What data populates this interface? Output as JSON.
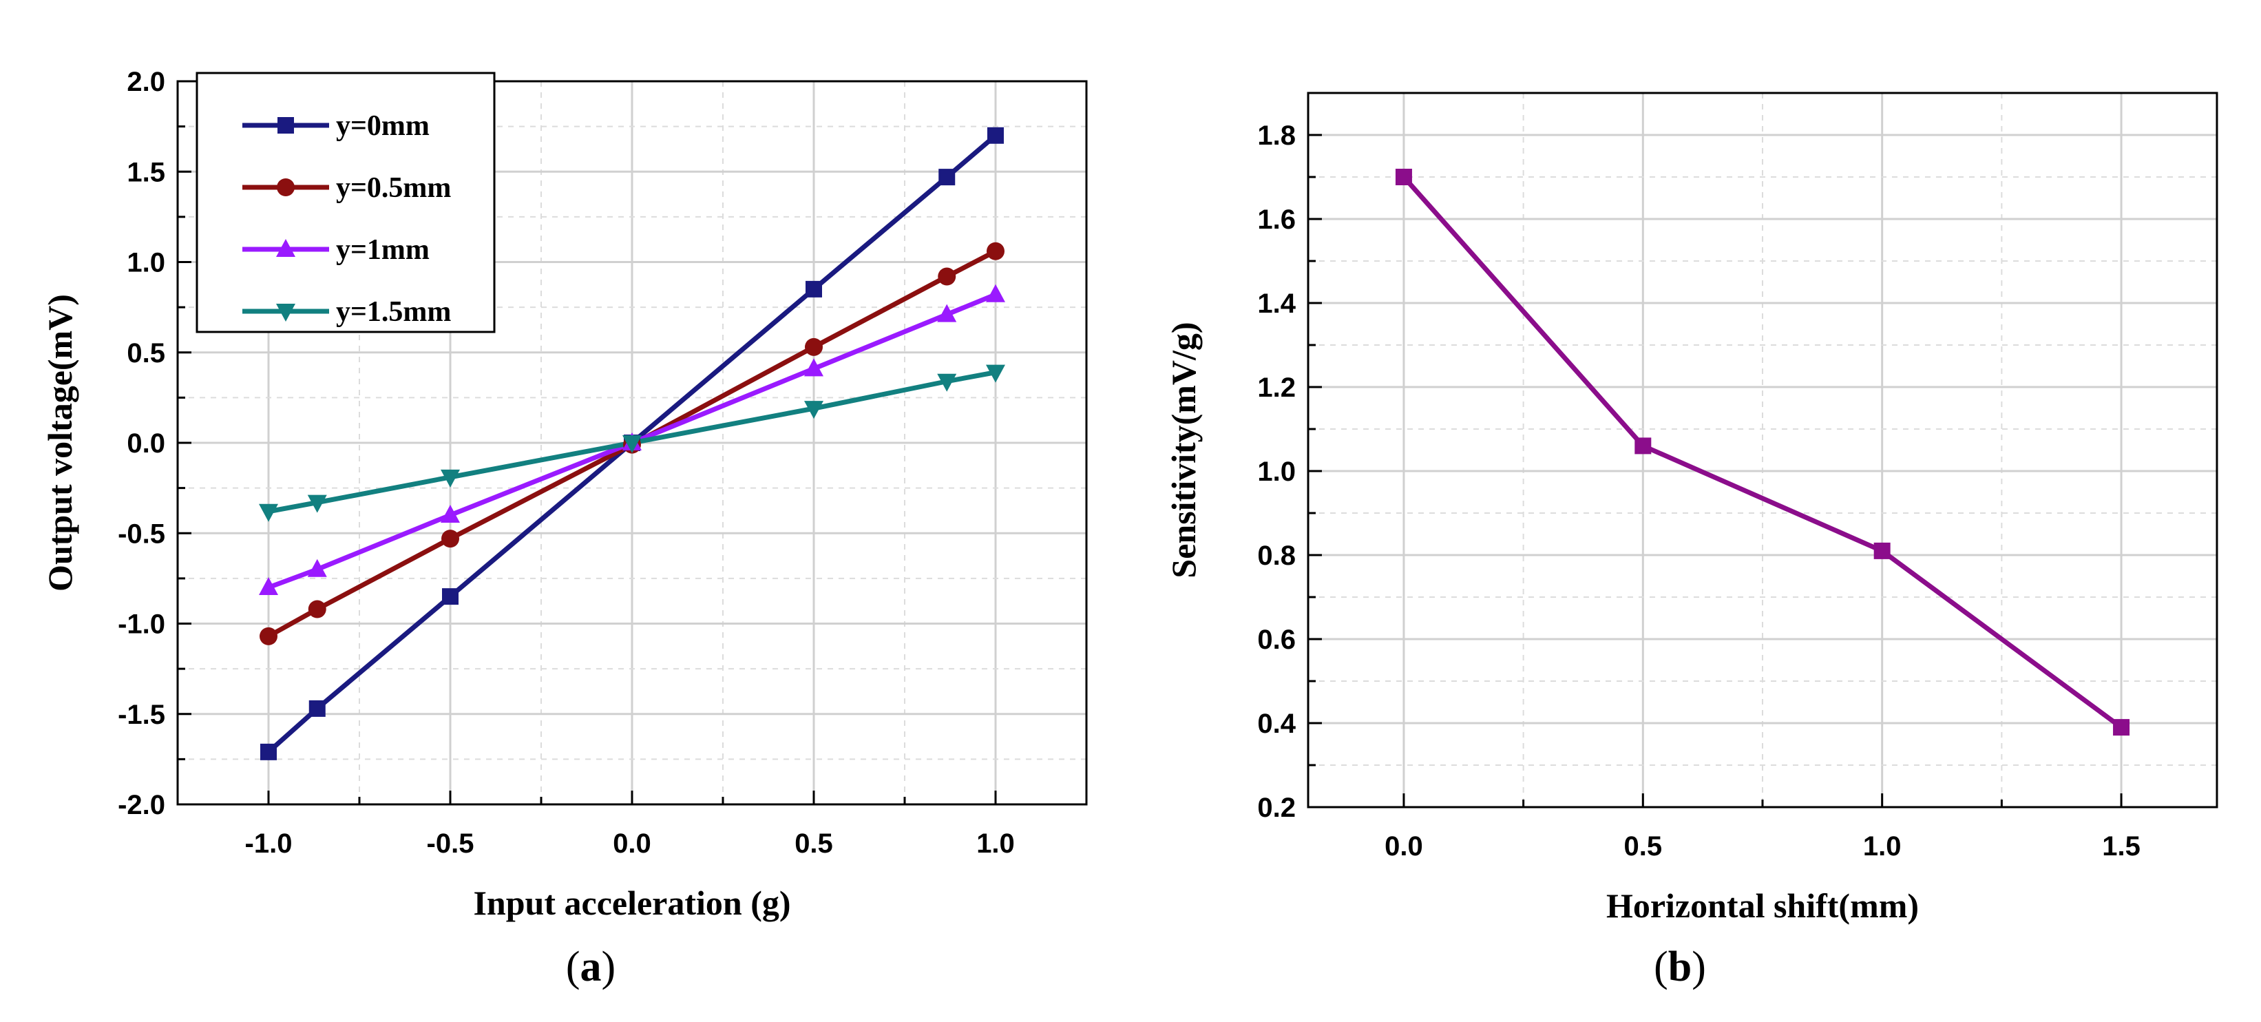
{
  "chart_data": [
    {
      "type": "line",
      "panel_label": "(a)",
      "panel_label_parts": [
        "(",
        "a",
        ")"
      ],
      "xlabel": "Input acceleration (g)",
      "ylabel": "Output voltage(mV)",
      "xlim": [
        -1.25,
        1.25
      ],
      "ylim": [
        -2.0,
        2.0
      ],
      "xticks": [
        -1.0,
        -0.5,
        0.0,
        0.5,
        1.0
      ],
      "xtick_labels": [
        "-1.0",
        "-0.5",
        "0.0",
        "0.5",
        "1.0"
      ],
      "yticks": [
        -2.0,
        -1.5,
        -1.0,
        -0.5,
        0.0,
        0.5,
        1.0,
        1.5,
        2.0
      ],
      "ytick_labels": [
        "-2.0",
        "-1.5",
        "-1.0",
        "-0.5",
        "0.0",
        "0.5",
        "1.0",
        "1.5",
        "2.0"
      ],
      "grid": true,
      "legend_position": "top-left",
      "series": [
        {
          "name": "y=0mm",
          "color": "#1a1a80",
          "marker": "square",
          "x": [
            -1.0,
            -0.866,
            -0.5,
            0.0,
            0.5,
            0.866,
            1.0
          ],
          "y": [
            -1.71,
            -1.47,
            -0.85,
            0.0,
            0.85,
            1.47,
            1.7
          ]
        },
        {
          "name": "y=0.5mm",
          "color": "#8b0f0f",
          "marker": "circle",
          "x": [
            -1.0,
            -0.866,
            -0.5,
            0.0,
            0.5,
            0.866,
            1.0
          ],
          "y": [
            -1.07,
            -0.92,
            -0.53,
            -0.01,
            0.53,
            0.92,
            1.06
          ]
        },
        {
          "name": "y=1mm",
          "color": "#9a1aff",
          "marker": "triangle-up",
          "x": [
            -1.0,
            -0.866,
            -0.5,
            0.0,
            0.5,
            0.866,
            1.0
          ],
          "y": [
            -0.8,
            -0.7,
            -0.4,
            0.0,
            0.41,
            0.71,
            0.82
          ]
        },
        {
          "name": "y=1.5mm",
          "color": "#128080",
          "marker": "triangle-down",
          "x": [
            -1.0,
            -0.866,
            -0.5,
            0.0,
            0.5,
            0.866,
            1.0
          ],
          "y": [
            -0.38,
            -0.33,
            -0.19,
            0.0,
            0.19,
            0.34,
            0.39
          ]
        }
      ]
    },
    {
      "type": "line",
      "panel_label": "(b)",
      "panel_label_parts": [
        "(",
        "b",
        ")"
      ],
      "xlabel": "Horizontal shift(mm)",
      "ylabel": "Sensitivity(mV/g)",
      "xlim": [
        -0.2,
        1.7
      ],
      "ylim": [
        0.2,
        1.9
      ],
      "xticks": [
        0.0,
        0.5,
        1.0,
        1.5
      ],
      "xtick_labels": [
        "0.0",
        "0.5",
        "1.0",
        "1.5"
      ],
      "yticks": [
        0.2,
        0.4,
        0.6,
        0.8,
        1.0,
        1.2,
        1.4,
        1.6,
        1.8
      ],
      "ytick_labels": [
        "0.2",
        "0.4",
        "0.6",
        "0.8",
        "1.0",
        "1.2",
        "1.4",
        "1.6",
        "1.8"
      ],
      "grid": true,
      "series": [
        {
          "color": "#8b0d8b",
          "marker": "square",
          "x": [
            0.0,
            0.5,
            1.0,
            1.5
          ],
          "y": [
            1.7,
            1.06,
            0.81,
            0.39
          ]
        }
      ]
    }
  ]
}
